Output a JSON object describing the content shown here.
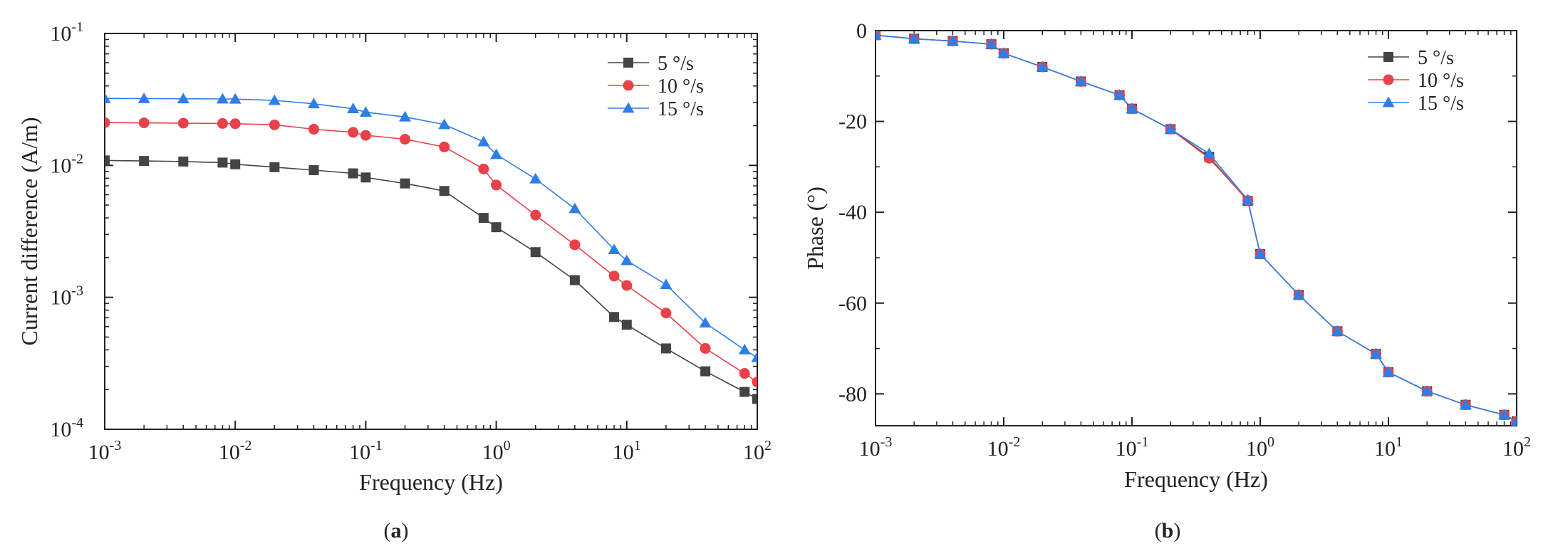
{
  "chart_data": [
    {
      "type": "line",
      "panel_label": "a",
      "xlabel": "Frequency (Hz)",
      "ylabel": "Current difference (A/m)",
      "x_scale": "log",
      "y_scale": "log",
      "xlim": [
        0.001,
        100
      ],
      "ylim": [
        0.0001,
        0.1
      ],
      "x_ticks": [
        {
          "value": 0.001,
          "base": "10",
          "exp": "-3"
        },
        {
          "value": 0.01,
          "base": "10",
          "exp": "-2"
        },
        {
          "value": 0.1,
          "base": "10",
          "exp": "-1"
        },
        {
          "value": 1,
          "base": "10",
          "exp": "0"
        },
        {
          "value": 10,
          "base": "10",
          "exp": "1"
        },
        {
          "value": 100,
          "base": "10",
          "exp": "2"
        }
      ],
      "y_ticks": [
        {
          "value": 0.0001,
          "base": "10",
          "exp": "-4"
        },
        {
          "value": 0.001,
          "base": "10",
          "exp": "-3"
        },
        {
          "value": 0.01,
          "base": "10",
          "exp": "-2"
        },
        {
          "value": 0.1,
          "base": "10",
          "exp": "-1"
        }
      ],
      "grid": false,
      "legend_position": "top-right",
      "x": [
        0.001,
        0.002,
        0.004,
        0.008,
        0.01,
        0.02,
        0.04,
        0.08,
        0.1,
        0.2,
        0.4,
        0.8,
        1,
        2,
        4,
        8,
        10,
        20,
        40,
        80,
        100
      ],
      "series": [
        {
          "name": "5 °/s",
          "color": "#444444",
          "marker": "square",
          "values": [
            0.0109,
            0.0108,
            0.0107,
            0.0105,
            0.0102,
            0.0097,
            0.0092,
            0.0087,
            0.0081,
            0.0073,
            0.0064,
            0.004,
            0.0034,
            0.0022,
            0.00135,
            0.00071,
            0.00062,
            0.00041,
            0.000275,
            0.000192,
            0.00017
          ]
        },
        {
          "name": "10 °/s",
          "color": "#e8414a",
          "marker": "circle",
          "values": [
            0.0211,
            0.021,
            0.0209,
            0.0208,
            0.0207,
            0.0203,
            0.0188,
            0.0178,
            0.0169,
            0.0158,
            0.0138,
            0.0094,
            0.0071,
            0.0042,
            0.0025,
            0.00145,
            0.00123,
            0.00076,
            0.00041,
            0.000265,
            0.000228
          ]
        },
        {
          "name": "15 °/s",
          "color": "#2f7ee6",
          "marker": "triangle",
          "values": [
            0.0322,
            0.0321,
            0.032,
            0.0319,
            0.0318,
            0.0311,
            0.0293,
            0.0269,
            0.0253,
            0.0233,
            0.0204,
            0.0151,
            0.0121,
            0.0079,
            0.0047,
            0.0023,
            0.0019,
            0.00125,
            0.00064,
            0.0004,
            0.00035
          ]
        }
      ]
    },
    {
      "type": "line",
      "panel_label": "b",
      "xlabel": "Frequency (Hz)",
      "ylabel": "Phase (°)",
      "x_scale": "log",
      "y_scale": "linear",
      "xlim": [
        0.001,
        100
      ],
      "ylim": [
        -87,
        0
      ],
      "x_ticks": [
        {
          "value": 0.001,
          "base": "10",
          "exp": "-3"
        },
        {
          "value": 0.01,
          "base": "10",
          "exp": "-2"
        },
        {
          "value": 0.1,
          "base": "10",
          "exp": "-1"
        },
        {
          "value": 1,
          "base": "10",
          "exp": "0"
        },
        {
          "value": 10,
          "base": "10",
          "exp": "1"
        },
        {
          "value": 100,
          "base": "10",
          "exp": "2"
        }
      ],
      "y_ticks": [
        {
          "value": 0,
          "label": "0"
        },
        {
          "value": -20,
          "label": "-20"
        },
        {
          "value": -40,
          "label": "-40"
        },
        {
          "value": -60,
          "label": "-60"
        },
        {
          "value": -80,
          "label": "-80"
        }
      ],
      "grid": false,
      "legend_position": "top-right",
      "x": [
        0.001,
        0.002,
        0.004,
        0.008,
        0.01,
        0.02,
        0.04,
        0.08,
        0.1,
        0.2,
        0.4,
        0.8,
        1,
        2,
        4,
        8,
        10,
        20,
        40,
        80,
        100
      ],
      "series": [
        {
          "name": "5 °/s",
          "color": "#444444",
          "marker": "square",
          "values": [
            -1,
            -1.8,
            -2.3,
            -3.0,
            -5.0,
            -8.0,
            -11.2,
            -14.2,
            -17.2,
            -21.7,
            -27.8,
            -37.5,
            -49.2,
            -58.2,
            -66.2,
            -71.2,
            -75.2,
            -79.4,
            -82.4,
            -84.6,
            -86.0
          ]
        },
        {
          "name": "10 °/s",
          "color": "#e8414a",
          "marker": "circle",
          "values": [
            -1,
            -1.8,
            -2.3,
            -3.0,
            -5.0,
            -8.0,
            -11.2,
            -14.2,
            -17.2,
            -21.7,
            -28.1,
            -37.4,
            -49.2,
            -58.2,
            -66.2,
            -71.2,
            -75.2,
            -79.4,
            -82.4,
            -84.6,
            -86.0
          ]
        },
        {
          "name": "15 °/s",
          "color": "#2f7ee6",
          "marker": "triangle",
          "values": [
            -1,
            -1.8,
            -2.3,
            -3.0,
            -5.0,
            -8.0,
            -11.2,
            -14.2,
            -17.2,
            -21.7,
            -27.1,
            -37.3,
            -49.2,
            -58.2,
            -66.2,
            -71.2,
            -75.2,
            -79.4,
            -82.4,
            -84.6,
            -86.2
          ]
        }
      ]
    }
  ],
  "captions": {
    "a": {
      "open": "(",
      "letter": "a",
      "close": ")"
    },
    "b": {
      "open": "(",
      "letter": "b",
      "close": ")"
    }
  }
}
